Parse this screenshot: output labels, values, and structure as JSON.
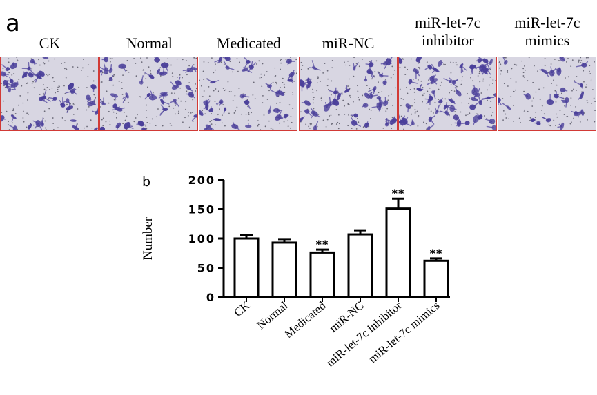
{
  "panel_a": {
    "letter": "a",
    "columns": [
      {
        "label_lines": [
          "CK"
        ],
        "density": 1.0
      },
      {
        "label_lines": [
          "Normal"
        ],
        "density": 0.95
      },
      {
        "label_lines": [
          "Medicated"
        ],
        "density": 0.8
      },
      {
        "label_lines": [
          "miR-NC"
        ],
        "density": 1.05
      },
      {
        "label_lines": [
          "miR-let-7c",
          "inhibitor"
        ],
        "density": 1.4
      },
      {
        "label_lines": [
          "miR-let-7c",
          "mimics"
        ],
        "density": 0.6
      }
    ],
    "colors": {
      "stain": "#4a3f9a",
      "background": "#d8d6e2",
      "border": "#d23a36"
    }
  },
  "chart_data": {
    "type": "bar",
    "panel_letter": "b",
    "categories": [
      "CK",
      "Normal",
      "Medicated",
      "miR-NC",
      "miR-let-7c inhibitor",
      "miR-let-7c mimics"
    ],
    "values": [
      100,
      93,
      76,
      107,
      151,
      62
    ],
    "errors": [
      6,
      6,
      5,
      7,
      17,
      4
    ],
    "significance": [
      "",
      "",
      "**",
      "",
      "**",
      "**"
    ],
    "ylabel": "Number",
    "ylim": [
      0,
      200
    ],
    "yticks": [
      0,
      50,
      100,
      150,
      200
    ],
    "grid": false,
    "legend": "none"
  }
}
